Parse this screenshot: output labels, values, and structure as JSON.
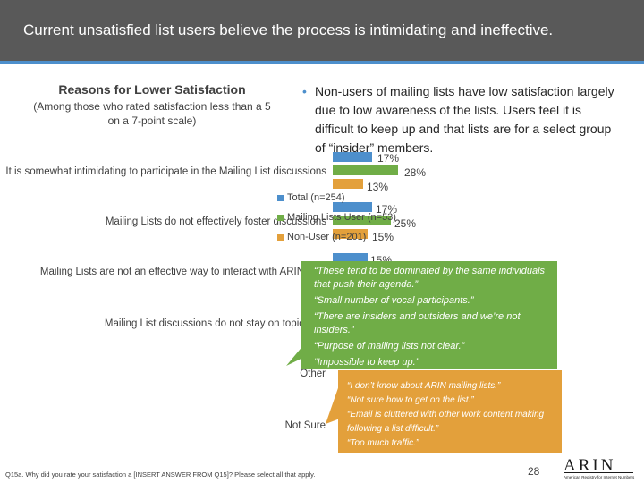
{
  "slide": {
    "title": "Current unsatisfied list users believe the process is intimidating and ineffective.",
    "page_number": "28"
  },
  "left_header": {
    "title": "Reasons for Lower Satisfaction",
    "note": "(Among those who rated satisfaction less than a 5 on a 7-point scale)"
  },
  "bullet": {
    "text": "Non-users of mailing lists have low satisfaction largely due to low awareness of the lists. Users feel it is difficult to keep up and that lists are for a select group of “insider” members."
  },
  "legend": {
    "total": "Total (n=254)",
    "user": "Mailing Lists User (n=53)",
    "nonuser": "Non-User (n=201)"
  },
  "colors": {
    "total": "#4d8fcc",
    "user": "#70ad47",
    "nonuser": "#e3a03b"
  },
  "chart_data": {
    "type": "bar",
    "title": "Reasons for Lower Satisfaction",
    "categories": [
      "It is somewhat intimidating to participate in the Mailing List discussions",
      "Mailing Lists do not effectively foster discussions",
      "Mailing Lists are not an effective way to interact with ARIN",
      "Mailing List discussions do not stay on topic",
      "Other",
      "Not Sure"
    ],
    "series": [
      {
        "name": "Total (n=254)",
        "values": [
          17,
          17,
          15,
          null,
          null,
          null
        ]
      },
      {
        "name": "Mailing Lists User (n=53)",
        "values": [
          28,
          25,
          null,
          null,
          null,
          null
        ]
      },
      {
        "name": "Non-User (n=201)",
        "values": [
          13,
          15,
          null,
          null,
          null,
          null
        ]
      }
    ],
    "value_labels": {
      "total": [
        "17%",
        "17%",
        "15%"
      ],
      "user": [
        "28%",
        "25%"
      ],
      "nonuser": [
        "13%",
        "15%"
      ]
    },
    "xlim": [
      0,
      100
    ]
  },
  "callouts": {
    "users": [
      "“These tend to be dominated by the same individuals that push their agenda.”",
      "“Small number of vocal participants.”",
      "“There are insiders and outsiders and we’re not insiders.”",
      "“Purpose of mailing lists not clear.”",
      "“Impossible to keep up.”"
    ],
    "nonusers": [
      "“I don’t know about ARIN mailing lists.”",
      "“Not sure how to get on the list.”",
      "“Email is cluttered with other work content making following a list difficult.”",
      "“Too much traffic.”"
    ]
  },
  "footer": {
    "question": "Q15a. Why did you rate your satisfaction a [INSERT ANSWER FROM Q15]? Please select all that apply.",
    "logo": "ARIN",
    "logo_tagline": "American Registry for Internet Numbers"
  }
}
